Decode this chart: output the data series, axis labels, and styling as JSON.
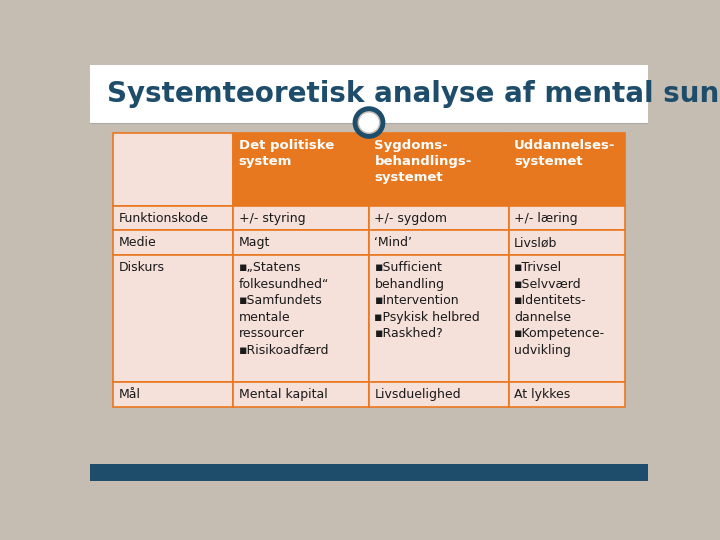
{
  "title": "Systemteoretisk analyse af mental sundhed",
  "title_color": "#1e4d6b",
  "bg_color": "#c5bcb2",
  "table_bg": "#f5e0da",
  "header_bg": "#e87820",
  "header_text_color": "#ffffff",
  "border_color": "#e87820",
  "bottom_bar_color": "#1e4d6b",
  "headers": [
    "",
    "Det politiske\nsystem",
    "Sygdoms-\nbehandlings-\nsystemet",
    "Uddannelses-\nsystemet"
  ],
  "rows": [
    [
      "Funktionskode",
      "+/- styring",
      "+/- sygdom",
      "+/- læring"
    ],
    [
      "Medie",
      "Magt",
      "‘Mind’",
      "Livsløb"
    ],
    [
      "Diskurs",
      "▪„Statens\nfolkesundhed“\n▪Samfundets\nmentale\nressourcer\n▪Risikoadfærd",
      "▪Sufficient\nbehandling\n▪Intervention\n▪Psykisk helbred\n▪Raskhed?",
      "▪Trivsel\n▪Selvværd\n▪Identitets-\ndannelse\n▪Kompetence-\nudvikling"
    ],
    [
      "Mål",
      "Mental kapital",
      "Livsduelighed",
      "At lykkes"
    ]
  ],
  "title_fontsize": 20,
  "header_fontsize": 9.5,
  "cell_fontsize": 9.0,
  "label_fontsize": 9.0
}
